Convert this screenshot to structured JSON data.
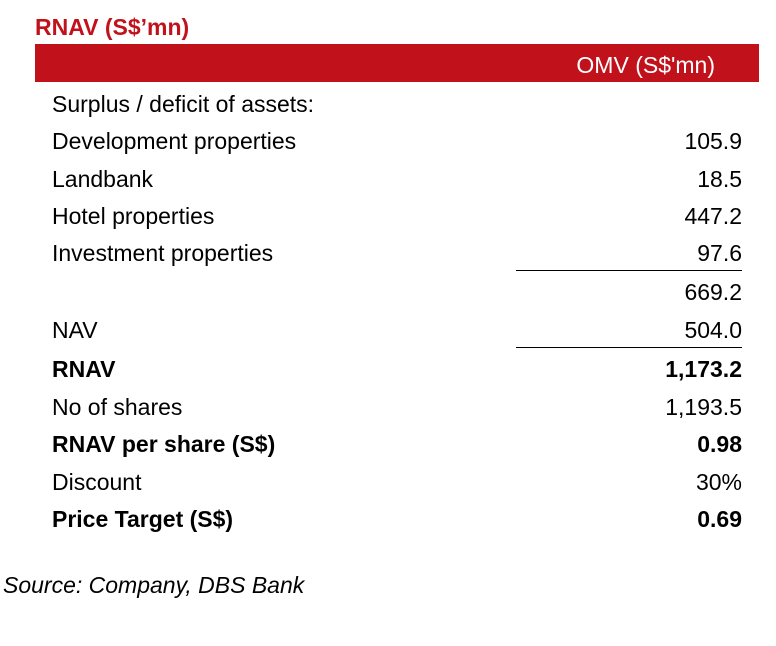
{
  "title": "RNAV (S$’mn)",
  "column_header": "OMV (S$'mn)",
  "section_label": "Surplus / deficit of assets:",
  "rows": [
    {
      "label": "Development properties",
      "value": "105.9"
    },
    {
      "label": "Landbank",
      "value": "18.5"
    },
    {
      "label": "Hotel properties",
      "value": "447.2"
    },
    {
      "label": "Investment properties",
      "value": "97.6"
    },
    {
      "label": "",
      "value": "669.2"
    },
    {
      "label": "NAV",
      "value": "504.0"
    },
    {
      "label": "RNAV",
      "value": "1,173.2"
    },
    {
      "label": "No of shares",
      "value": "1,193.5"
    },
    {
      "label": "RNAV per share (S$)",
      "value": "0.98"
    },
    {
      "label": "Discount",
      "value": "30%"
    },
    {
      "label": "Price Target (S$)",
      "value": "0.69"
    }
  ],
  "source": "Source: Company, DBS Bank",
  "colors": {
    "accent": "#c1121c"
  }
}
